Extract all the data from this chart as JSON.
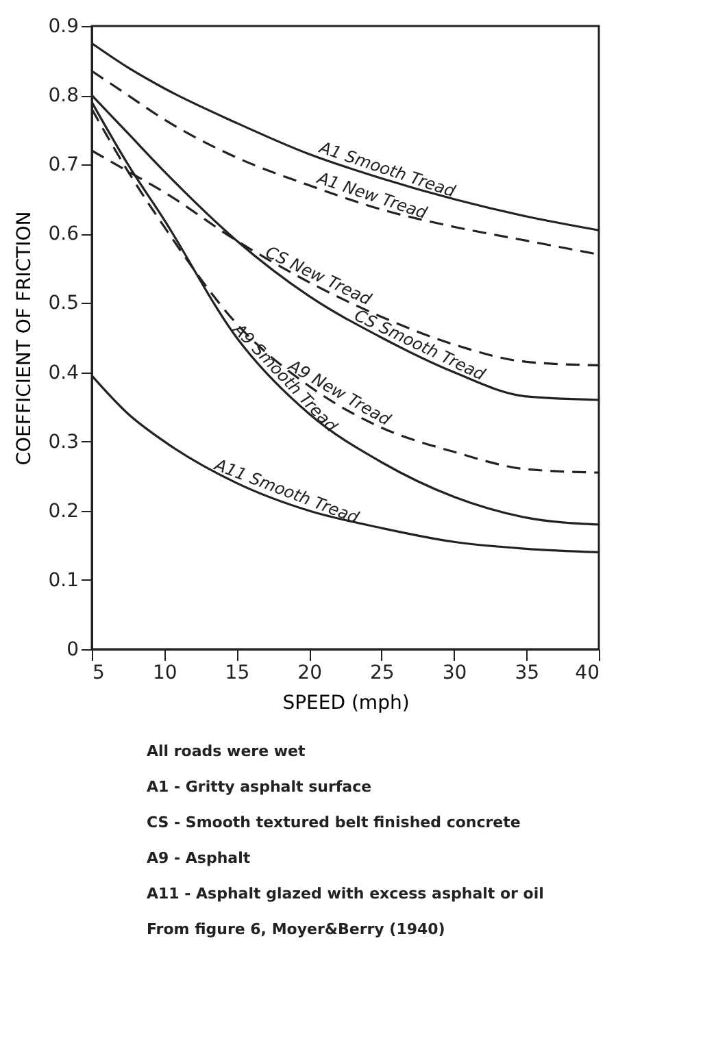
{
  "chart_data": {
    "type": "line",
    "xlabel": "SPEED (mph)",
    "ylabel": "COEFFICIENT OF FRICTION",
    "x": [
      5,
      7.5,
      10,
      15,
      20,
      25,
      30,
      35,
      40
    ],
    "xlim": [
      5,
      40
    ],
    "xticks": [
      5,
      10,
      15,
      20,
      25,
      30,
      35,
      40
    ],
    "ylim": [
      0,
      0.9
    ],
    "yticks": [
      {
        "value": 0,
        "label": "0"
      },
      0.1,
      0.2,
      0.3,
      0.4,
      0.5,
      0.6,
      0.7,
      0.8,
      0.9
    ],
    "grid": false,
    "marker": "none",
    "series": [
      {
        "name": "A1 Smooth Tread",
        "color": "#222222",
        "line_style": "solid",
        "values": [
          0.875,
          0.84,
          0.81,
          0.76,
          0.715,
          0.68,
          0.65,
          0.625,
          0.605
        ]
      },
      {
        "name": "A1 New Tread",
        "color": "#222222",
        "line_style": "dashed",
        "values": [
          0.835,
          0.8,
          0.765,
          0.71,
          0.67,
          0.635,
          0.61,
          0.59,
          0.57
        ]
      },
      {
        "name": "CS New Tread",
        "color": "#222222",
        "line_style": "dashed",
        "values": [
          0.72,
          0.69,
          0.66,
          0.59,
          0.53,
          0.48,
          0.44,
          0.415,
          0.41
        ]
      },
      {
        "name": "CS Smooth Tread",
        "color": "#222222",
        "line_style": "solid",
        "values": [
          0.8,
          0.745,
          0.69,
          0.59,
          0.51,
          0.45,
          0.4,
          0.365,
          0.36
        ]
      },
      {
        "name": "A9 New Tread",
        "color": "#222222",
        "line_style": "dashed",
        "values": [
          0.78,
          0.69,
          0.61,
          0.47,
          0.38,
          0.32,
          0.285,
          0.26,
          0.255
        ]
      },
      {
        "name": "A9 Smooth Tread",
        "color": "#222222",
        "line_style": "solid",
        "values": [
          0.79,
          0.7,
          0.62,
          0.45,
          0.34,
          0.27,
          0.22,
          0.19,
          0.18
        ]
      },
      {
        "name": "A11 Smooth Tread",
        "color": "#222222",
        "line_style": "solid",
        "values": [
          0.395,
          0.34,
          0.3,
          0.24,
          0.2,
          0.175,
          0.155,
          0.145,
          0.14
        ]
      }
    ],
    "annotations": [
      "All roads were wet",
      "A1 - Gritty asphalt surface",
      "CS - Smooth textured belt finished concrete",
      "A9 - Asphalt",
      "A11 - Asphalt glazed with excess asphalt or oil",
      "From figure 6, Moyer&Berry (1940)"
    ]
  }
}
